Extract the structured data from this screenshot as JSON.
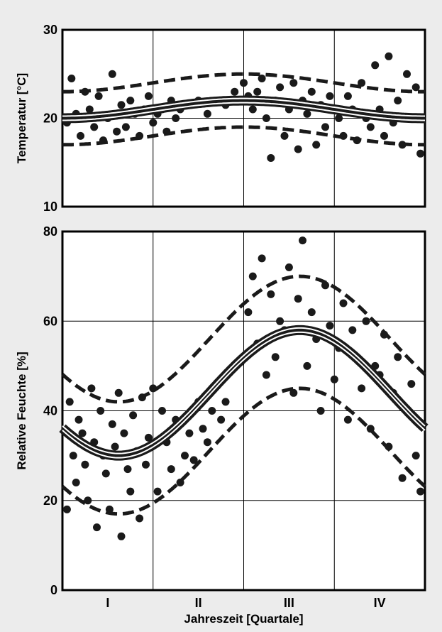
{
  "chart_data": [
    {
      "type": "scatter",
      "panel": "top",
      "ylabel": "Temperatur [°C]",
      "ylim": [
        10,
        30
      ],
      "yticks": [
        10,
        20,
        30
      ],
      "xlim": [
        0,
        4
      ],
      "grid": true,
      "x_categories": [
        "I",
        "II",
        "III",
        "IV"
      ],
      "series": [
        {
          "role": "points",
          "x": [
            0.05,
            0.1,
            0.15,
            0.2,
            0.25,
            0.3,
            0.35,
            0.4,
            0.45,
            0.5,
            0.55,
            0.6,
            0.65,
            0.7,
            0.75,
            0.8,
            0.85,
            0.9,
            0.95,
            1.0,
            1.05,
            1.1,
            1.15,
            1.2,
            1.25,
            1.3,
            1.4,
            1.5,
            1.6,
            1.7,
            1.8,
            1.9,
            2.0,
            2.05,
            2.1,
            2.15,
            2.2,
            2.25,
            2.3,
            2.35,
            2.4,
            2.45,
            2.5,
            2.55,
            2.6,
            2.65,
            2.7,
            2.75,
            2.8,
            2.85,
            2.9,
            2.95,
            3.0,
            3.05,
            3.1,
            3.15,
            3.2,
            3.25,
            3.3,
            3.35,
            3.4,
            3.45,
            3.5,
            3.55,
            3.6,
            3.65,
            3.7,
            3.75,
            3.8,
            3.85,
            3.9,
            3.95
          ],
          "y": [
            19.5,
            24.5,
            20.5,
            18,
            23,
            21,
            19,
            22.5,
            17.5,
            20,
            25,
            18.5,
            21.5,
            19,
            22,
            20.5,
            18,
            21,
            22.5,
            19.5,
            20.5,
            21,
            18.5,
            22,
            20,
            21,
            21.5,
            22,
            20.5,
            22,
            21.5,
            23,
            24,
            22.5,
            21,
            23,
            24.5,
            20,
            15.5,
            22,
            23.5,
            18,
            21,
            24,
            16.5,
            22,
            20.5,
            23,
            17,
            21.5,
            19,
            22.5,
            21,
            20,
            18,
            22.5,
            21,
            17.5,
            24,
            20,
            19,
            26,
            21,
            18,
            27,
            19.5,
            22,
            17,
            25,
            20,
            23.5,
            16
          ]
        },
        {
          "role": "mean",
          "name": "",
          "curve": "a+b*cos(2*pi*(x-c)/4)",
          "a": 21,
          "b": 1,
          "c": 2
        },
        {
          "role": "upper_band",
          "curve": "a+b*cos(2*pi*(x-c)/4)",
          "a": 24,
          "b": 1,
          "c": 2
        },
        {
          "role": "lower_band",
          "curve": "a+b*cos(2*pi*(x-c)/4)",
          "a": 18,
          "b": 1,
          "c": 2
        }
      ]
    },
    {
      "type": "scatter",
      "panel": "bottom",
      "ylabel": "Relative Feuchte  [%]",
      "xlabel": "Jahreszeit [Quartale]",
      "ylim": [
        0,
        80
      ],
      "yticks": [
        0,
        20,
        40,
        60,
        80
      ],
      "xlim": [
        0,
        4
      ],
      "grid": true,
      "x_categories": [
        "I",
        "II",
        "III",
        "IV"
      ],
      "series": [
        {
          "role": "points",
          "x": [
            0.05,
            0.08,
            0.12,
            0.15,
            0.18,
            0.22,
            0.25,
            0.28,
            0.32,
            0.35,
            0.38,
            0.42,
            0.45,
            0.48,
            0.52,
            0.55,
            0.58,
            0.62,
            0.65,
            0.68,
            0.72,
            0.75,
            0.78,
            0.82,
            0.85,
            0.88,
            0.92,
            0.95,
            1.0,
            1.05,
            1.1,
            1.15,
            1.2,
            1.25,
            1.3,
            1.35,
            1.4,
            1.45,
            1.5,
            1.55,
            1.6,
            1.65,
            1.7,
            1.75,
            1.8,
            2.05,
            2.1,
            2.15,
            2.2,
            2.25,
            2.3,
            2.35,
            2.4,
            2.45,
            2.5,
            2.55,
            2.6,
            2.65,
            2.7,
            2.75,
            2.8,
            2.85,
            2.9,
            2.95,
            3.0,
            3.05,
            3.1,
            3.15,
            3.2,
            3.25,
            3.3,
            3.35,
            3.4,
            3.45,
            3.5,
            3.55,
            3.6,
            3.65,
            3.7,
            3.75,
            3.8,
            3.85,
            3.9,
            3.95
          ],
          "y": [
            18,
            42,
            30,
            24,
            38,
            35,
            28,
            20,
            45,
            33,
            14,
            40,
            30,
            26,
            18,
            37,
            32,
            44,
            12,
            35,
            27,
            22,
            39,
            31,
            16,
            43,
            28,
            34,
            45,
            22,
            40,
            33,
            27,
            38,
            24,
            30,
            35,
            29,
            42,
            36,
            33,
            40,
            46,
            38,
            42,
            62,
            70,
            55,
            74,
            48,
            66,
            52,
            60,
            58,
            72,
            44,
            65,
            78,
            50,
            62,
            56,
            40,
            68,
            59,
            47,
            54,
            64,
            38,
            58,
            52,
            45,
            60,
            36,
            50,
            48,
            57,
            32,
            44,
            52,
            25,
            40,
            46,
            30,
            22
          ]
        },
        {
          "role": "mean",
          "curve": "a+b*cos(2*pi*(x-c)/4)",
          "a": 44,
          "b": 14,
          "c": 2.62
        },
        {
          "role": "upper_band",
          "curve": "a+b*cos(2*pi*(x-c)/4)",
          "a": 56,
          "b": 14,
          "c": 2.62
        },
        {
          "role": "lower_band",
          "curve": "a+b*cos(2*pi*(x-c)/4)",
          "a": 31,
          "b": 14,
          "c": 2.62
        }
      ]
    }
  ]
}
